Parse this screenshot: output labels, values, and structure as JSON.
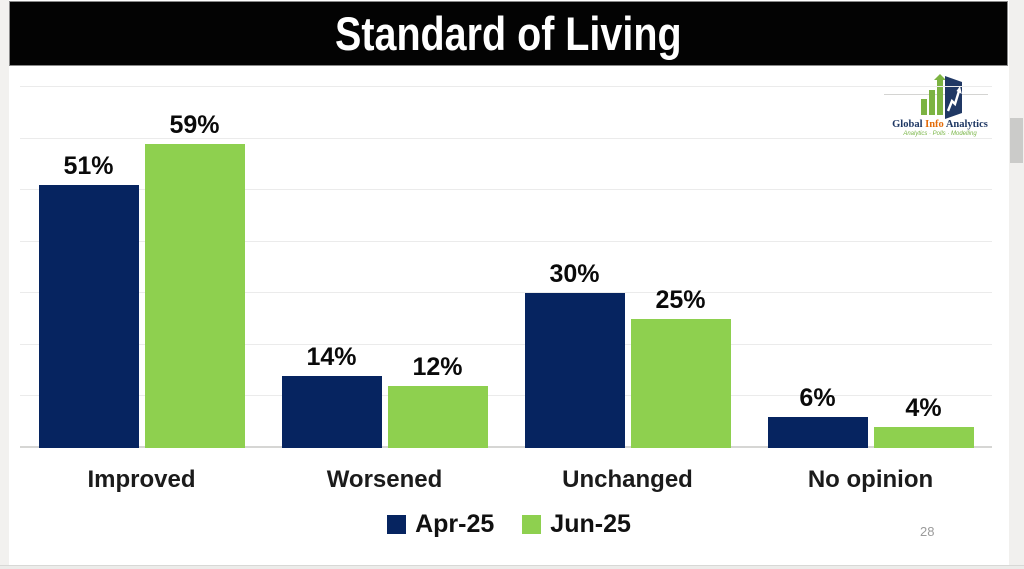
{
  "slide": {
    "title": "Standard of Living",
    "page_number": "28"
  },
  "logo": {
    "name": "Global Info Analytics",
    "name_parts": [
      {
        "text": "Global ",
        "color": "#1f3864"
      },
      {
        "text": "Info",
        "color": "#e46c0a"
      },
      {
        "text": " Analytics",
        "color": "#1f3864"
      }
    ],
    "tagline": "Analytics · Polls · Modelling"
  },
  "chart_data": {
    "type": "bar",
    "title": "Standard of Living",
    "categories": [
      "Improved",
      "Worsened",
      "Unchanged",
      "No opinion"
    ],
    "series": [
      {
        "name": "Apr-25",
        "color": "#062460",
        "values": [
          51,
          14,
          30,
          6
        ]
      },
      {
        "name": "Jun-25",
        "color": "#8ed04f",
        "values": [
          59,
          12,
          25,
          4
        ]
      }
    ],
    "value_suffix": "%",
    "ylim": [
      0,
      70
    ],
    "gridline_step": 10,
    "grid": true,
    "data_labels": true,
    "legend_position": "bottom"
  }
}
